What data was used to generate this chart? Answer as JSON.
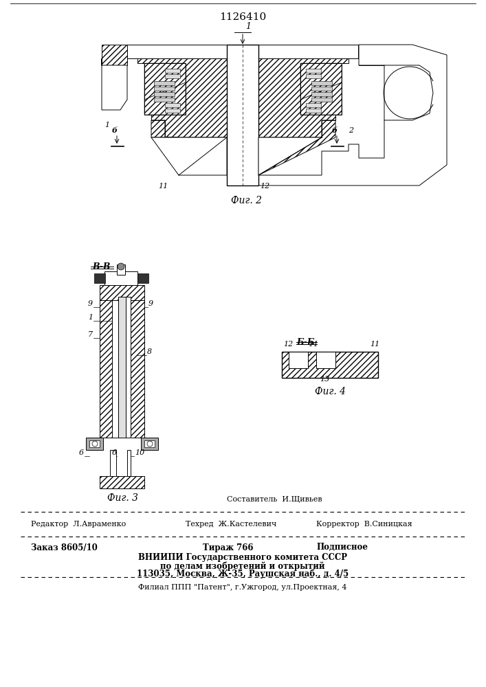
{
  "patent_number": "1126410",
  "background_color": "#ffffff",
  "fig_width": 7.07,
  "fig_height": 10.0,
  "dpi": 100,
  "footer": {
    "sestavitel": "Составитель  И.Щивьев",
    "redaktor": "Редактор  Л.Авраменко",
    "tehred": "Техред  Ж.Кастелевич",
    "korrektor": "Корректор  В.Синицкая",
    "zakaz": "Заказ 8605/10",
    "tirazh": "Тираж 766",
    "podpisnoe": "Подписное",
    "vniipи": "ВНИИПИ Государственного комитета СССР",
    "po_delam": "по делам изобретений и открытий",
    "address": "113035, Москва, Ж-35, Раушская наб., д. 4/5",
    "filial": "Филиал ППП \"Патент\", г.Ужгород, ул.Проектная, 4"
  }
}
